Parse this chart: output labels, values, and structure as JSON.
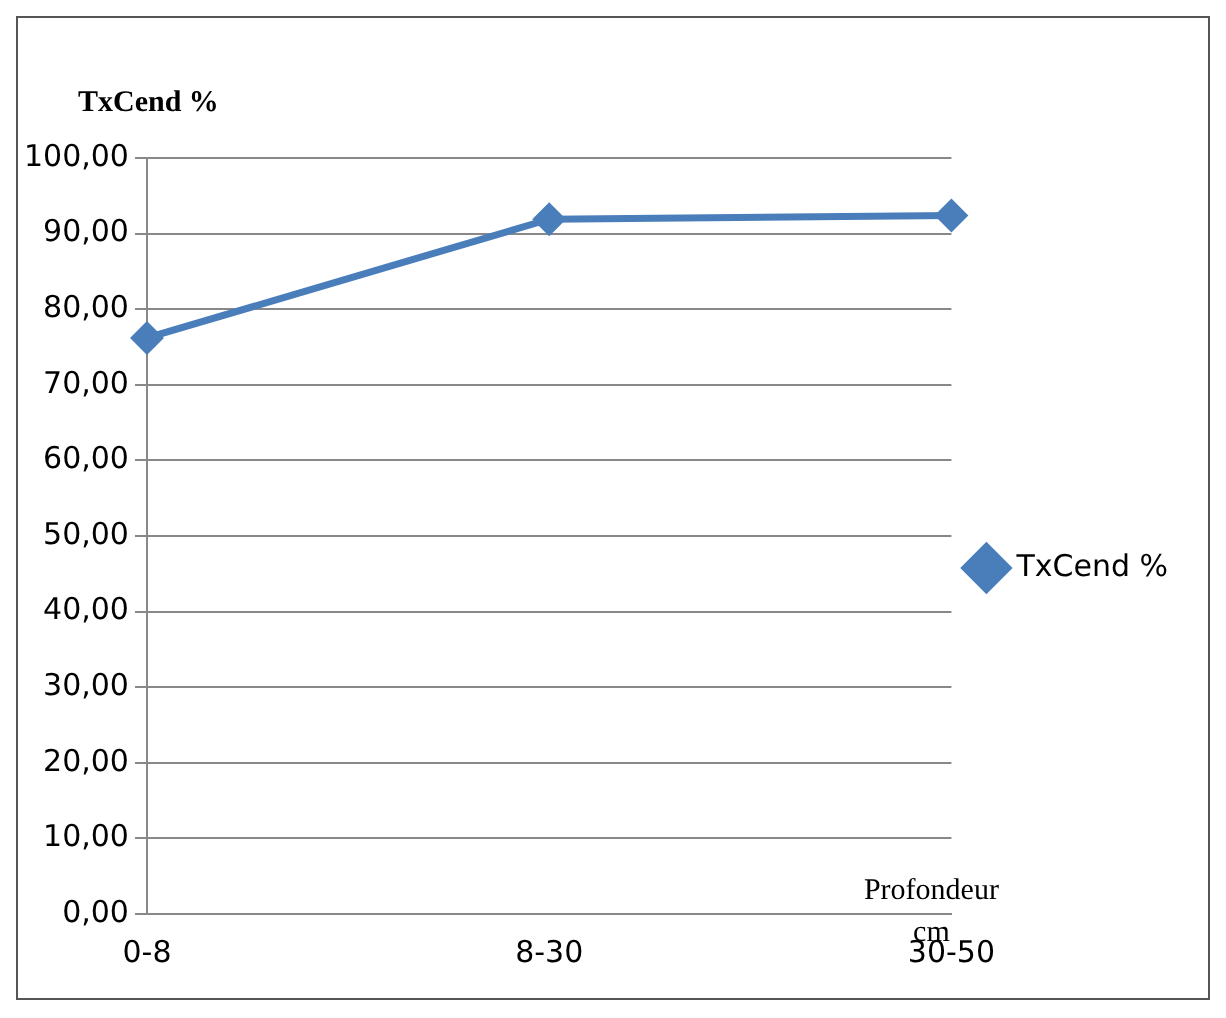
{
  "chart_data": {
    "type": "line",
    "ylabel": "TxCend %",
    "xlabel": "Profondeur cm",
    "categories": [
      "0-8",
      "8-30",
      "30-50"
    ],
    "series": [
      {
        "name": "TxCend %",
        "color": "#4a7ebb",
        "values": [
          76.2,
          91.9,
          92.4
        ]
      }
    ],
    "ylim": [
      0,
      100
    ],
    "yticks": [
      {
        "value": 0,
        "label": "0,00"
      },
      {
        "value": 10,
        "label": "10,00"
      },
      {
        "value": 20,
        "label": "20,00"
      },
      {
        "value": 30,
        "label": "30,00"
      },
      {
        "value": 40,
        "label": "40,00"
      },
      {
        "value": 50,
        "label": "50,00"
      },
      {
        "value": 60,
        "label": "60,00"
      },
      {
        "value": 70,
        "label": "70,00"
      },
      {
        "value": 80,
        "label": "80,00"
      },
      {
        "value": 90,
        "label": "90,00"
      },
      {
        "value": 100,
        "label": "100,00"
      }
    ],
    "grid": "y",
    "legend": "right",
    "marker": "diamond",
    "line_style": "solid"
  }
}
